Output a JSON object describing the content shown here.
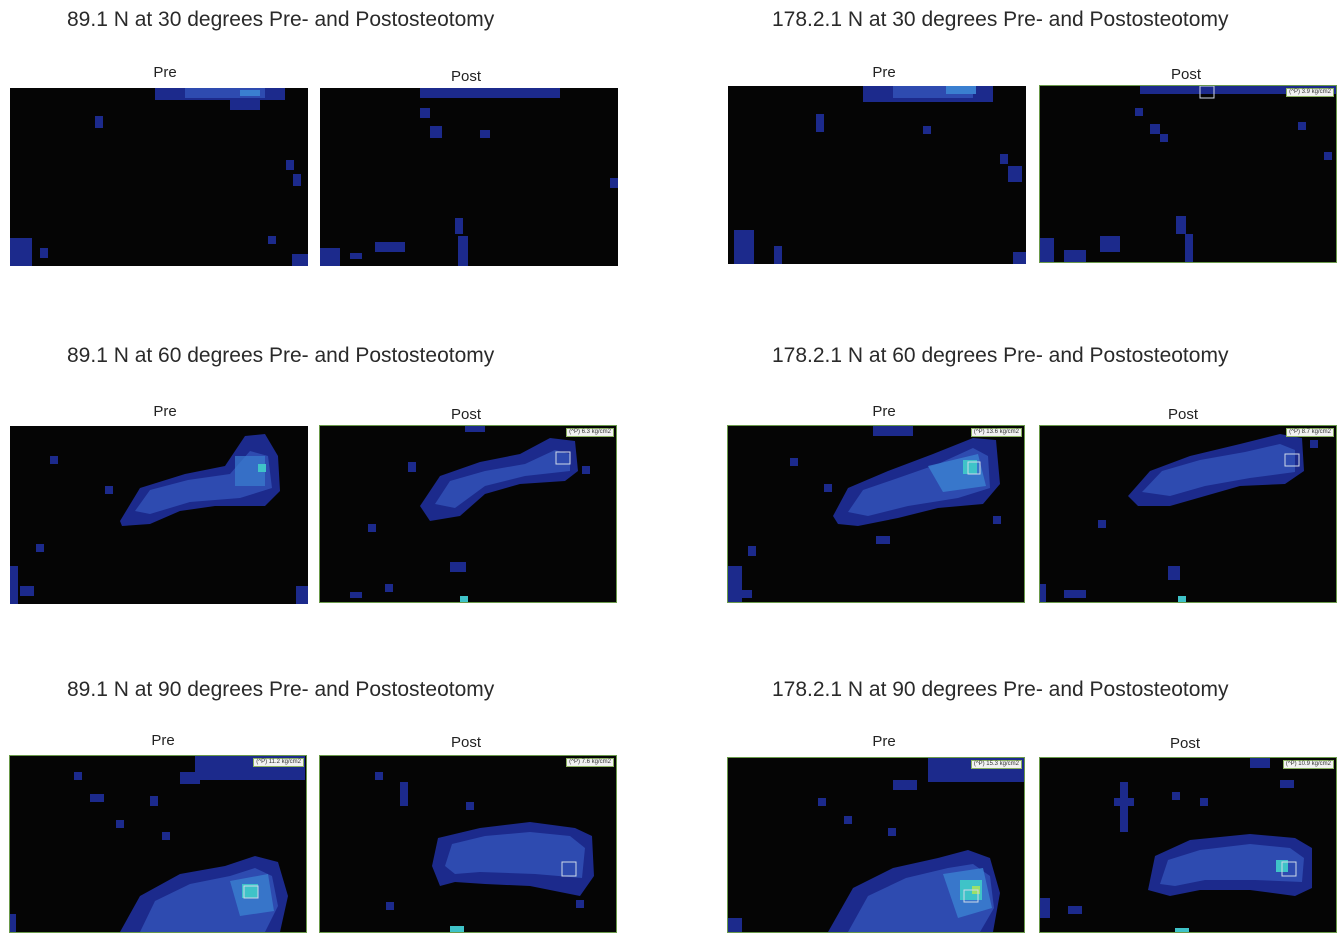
{
  "groups": [
    {
      "title": "89.1 N at 30 degrees Pre- and Postosteotomy"
    },
    {
      "title": "178.2.1 N at 30 degrees Pre- and Postosteotomy"
    },
    {
      "title": "89.1 N at 60 degrees Pre- and Postosteotomy"
    },
    {
      "title": "178.2.1 N at 60 degrees Pre- and Postosteotomy"
    },
    {
      "title": "89.1 N at 90 degrees Pre- and Postosteotomy"
    },
    {
      "title": "178.2.1 N at 90 degrees Pre- and Postosteotomy"
    }
  ],
  "labels": {
    "pre": "Pre",
    "post": "Post"
  },
  "readouts": {
    "g1_post": "(^P) 3.9 kg/cm2",
    "g2_post": "(^P) 6.3 kg/cm2",
    "g3_pre": "(^P) 13.6 kg/cm2",
    "g3_post": "(^P) 8.7 kg/cm2",
    "g4_pre": "(^P) 11.2 kg/cm2",
    "g4_post": "(^P) 7.6 kg/cm2",
    "g5_pre": "(^P) 15.3 kg/cm2",
    "g5_post": "(^P) 10.9 kg/cm2"
  },
  "colors": {
    "background": "#050505",
    "low": "#1c2a8c",
    "mid": "#2e4bb0",
    "high": "#3a7fd0",
    "peak": "#3fc3c8",
    "hot": "#9be06a"
  }
}
